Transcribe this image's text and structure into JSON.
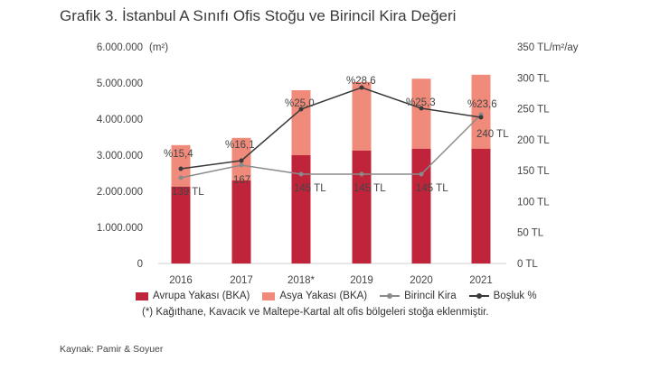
{
  "title": "Grafik 3. İstanbul A Sınıfı Ofis Stoğu ve Birincil Kira Değeri",
  "left_axis": {
    "unit_label": "(m²)",
    "ticks": [
      "6.000.000",
      "5.000.000",
      "4.000.000",
      "3.000.000",
      "2.000.000",
      "1.000.000",
      "0"
    ]
  },
  "right_axis": {
    "ticks": [
      "350 TL/m²/ay",
      "300 TL",
      "250 TL",
      "200 TL",
      "150 TL",
      "100 TL",
      "50 TL",
      "0 TL"
    ]
  },
  "legend": {
    "avrupa": "Avrupa Yakası (BKA)",
    "asya": "Asya Yakası (BKA)",
    "kira": "Birincil Kira",
    "bosluk": "Boşluk %"
  },
  "note": "(*) Kağıthane, Kavacık ve Maltepe-Kartal alt ofis bölgeleri stoğa eklenmiştir.",
  "source": "Kaynak: Pamir & Soyuer",
  "colors": {
    "avrupa": "#c0243a",
    "asya": "#f08a7a",
    "kira": "#8a8a8a",
    "bosluk": "#3a3a3a"
  },
  "chart_data": {
    "type": "bar",
    "title": "Grafik 3. İstanbul A Sınıfı Ofis Stoğu ve Birincil Kira Değeri",
    "categories": [
      "2016",
      "2017",
      "2018*",
      "2019",
      "2020",
      "2021"
    ],
    "series": [
      {
        "name": "Avrupa Yakası (BKA)",
        "type": "stacked-bar",
        "axis": "left",
        "values": [
          2130000,
          2300000,
          3000000,
          3130000,
          3180000,
          3180000
        ]
      },
      {
        "name": "Asya Yakası (BKA)",
        "type": "stacked-bar",
        "axis": "left",
        "values": [
          1150000,
          1180000,
          1800000,
          1900000,
          1940000,
          2050000
        ]
      },
      {
        "name": "Birincil Kira",
        "type": "line",
        "axis": "right",
        "values": [
          139,
          167,
          145,
          145,
          145,
          240
        ],
        "labels": [
          "139 TL",
          "167",
          "145 TL",
          "145 TL",
          "145 TL",
          "240 TL"
        ]
      },
      {
        "name": "Boşluk %",
        "type": "line",
        "axis": "secondary",
        "values": [
          15.4,
          16.1,
          25.0,
          28.6,
          25.3,
          23.6
        ],
        "labels": [
          "%15,4",
          "%16,1",
          "%25,0",
          "%28,6",
          "%25,3",
          "%23,6"
        ]
      }
    ],
    "ylabel": "(m²)",
    "ylim": [
      0,
      6000000
    ],
    "y2label": "TL/m²/ay",
    "y2lim": [
      0,
      350
    ],
    "grid": false,
    "legend_position": "bottom"
  }
}
